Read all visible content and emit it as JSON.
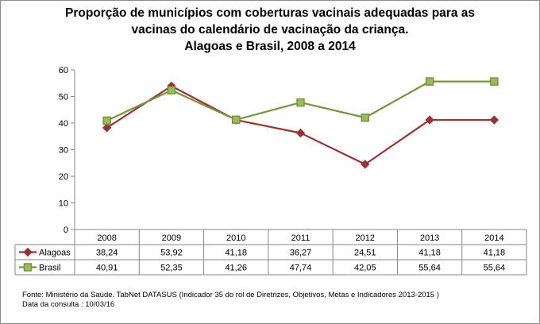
{
  "chart_data": {
    "type": "line",
    "title_lines": [
      "Proporção de municípios com coberturas vacinais adequadas para as",
      "vacinas do calendário de vacinação da criança.",
      "Alagoas e Brasil, 2008 a 2014"
    ],
    "categories": [
      "2008",
      "2009",
      "2010",
      "2011",
      "2012",
      "2013",
      "2014"
    ],
    "series": [
      {
        "name": "Alagoas",
        "values": [
          38.24,
          53.92,
          41.18,
          36.27,
          24.51,
          41.18,
          41.18
        ],
        "labels": [
          "38,24",
          "53,92",
          "41,18",
          "36,27",
          "24,51",
          "41,18",
          "41,18"
        ],
        "color": "#993333",
        "marker": "diamond"
      },
      {
        "name": "Brasil",
        "values": [
          40.91,
          52.35,
          41.26,
          47.74,
          42.05,
          55.64,
          55.64
        ],
        "labels": [
          "40,91",
          "52,35",
          "41,26",
          "47,74",
          "42,05",
          "55,64",
          "55,64"
        ],
        "color": "#77933c",
        "marker": "square"
      }
    ],
    "y_ticks": [
      "0",
      "10",
      "20",
      "30",
      "40",
      "50",
      "60"
    ],
    "ylim": [
      0,
      60
    ],
    "grid": false,
    "legend": "data-table"
  },
  "footer": {
    "source": "Fonte: Ministério da Saúde. TabNet DATASUS (Indicador 35 do rol de Diretrizes, Objetivos, Metas e Indicadores 2013-2015 )",
    "date": "Data da consulta : 10/03/16"
  }
}
